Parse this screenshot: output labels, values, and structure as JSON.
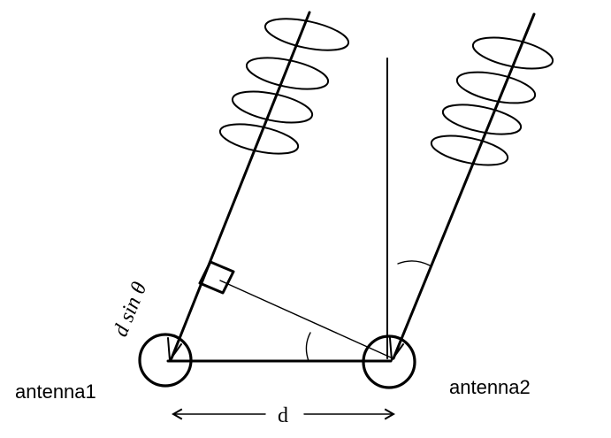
{
  "labels": {
    "antenna1": "antenna1",
    "antenna2": "antenna2",
    "spacing": "d",
    "path_difference_prefix": "d sin ",
    "path_difference_symbol": "θ"
  }
}
